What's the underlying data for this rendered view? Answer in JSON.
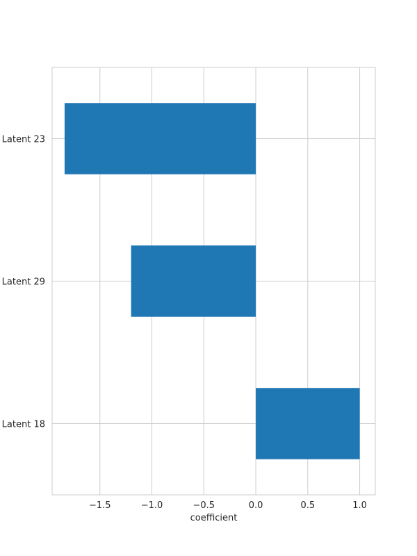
{
  "chart_data": {
    "type": "bar",
    "orientation": "horizontal",
    "title": "",
    "xlabel": "coefficient",
    "ylabel": "",
    "categories": [
      "Latent 18",
      "Latent 29",
      "Latent 23"
    ],
    "values": [
      1.0,
      -1.2,
      -1.84
    ],
    "xlim": [
      -1.96,
      1.15
    ],
    "xticks": [
      -1.5,
      -1.0,
      -0.5,
      0.0,
      0.5,
      1.0
    ],
    "xtick_labels": [
      "−1.5",
      "−1.0",
      "−0.5",
      "0.0",
      "0.5",
      "1.0"
    ],
    "grid": true,
    "bar_color": "#1f77b4",
    "grid_color": "#cccccc",
    "spine_color": "#cccccc"
  }
}
